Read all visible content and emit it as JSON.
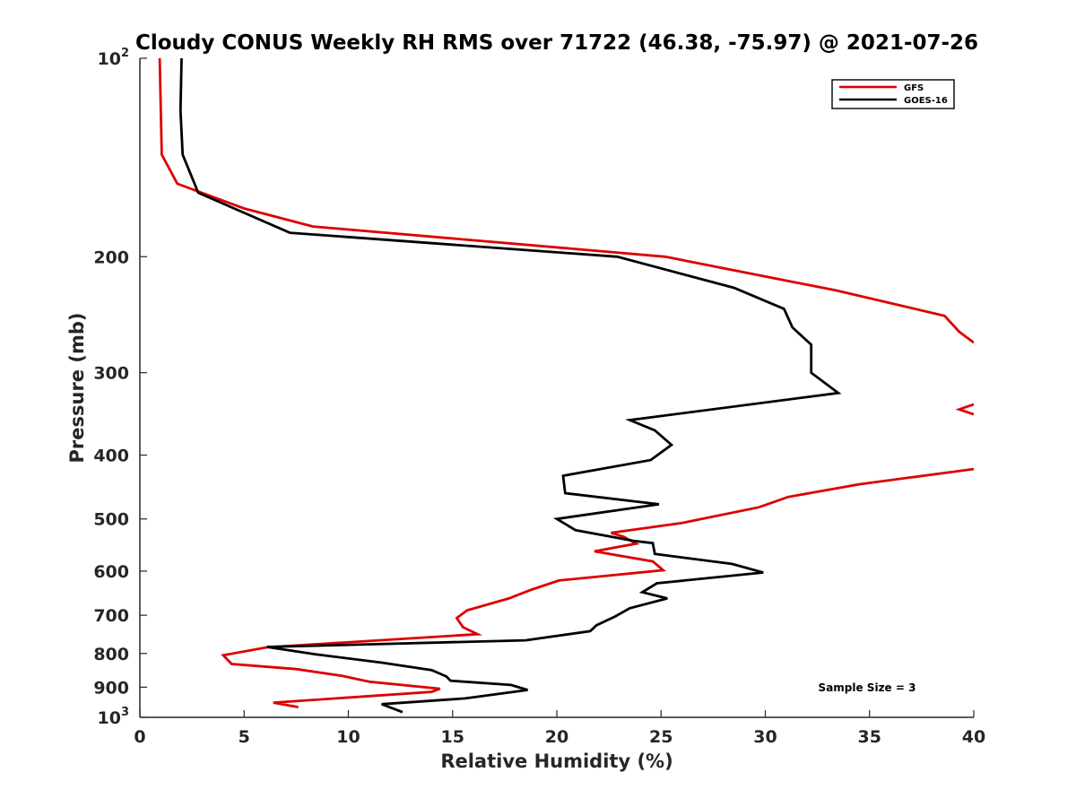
{
  "chart_data": {
    "type": "line",
    "title": "Cloudy CONUS Weekly RH RMS over 71722 (46.38, -75.97) @ 2021-07-26",
    "xlabel": "Relative Humidity (%)",
    "ylabel": "Pressure (mb)",
    "xlim": [
      0,
      40
    ],
    "ylim": [
      100,
      1000
    ],
    "yscale": "log",
    "y_reversed": true,
    "x_ticks": [
      {
        "value": 0,
        "label": "0"
      },
      {
        "value": 5,
        "label": "5"
      },
      {
        "value": 10,
        "label": "10"
      },
      {
        "value": 15,
        "label": "15"
      },
      {
        "value": 20,
        "label": "20"
      },
      {
        "value": 25,
        "label": "25"
      },
      {
        "value": 30,
        "label": "30"
      },
      {
        "value": 35,
        "label": "35"
      },
      {
        "value": 40,
        "label": "40"
      }
    ],
    "y_ticks": [
      {
        "value": 100,
        "label": "10",
        "sup": "2"
      },
      {
        "value": 200,
        "label": "200"
      },
      {
        "value": 300,
        "label": "300"
      },
      {
        "value": 400,
        "label": "400"
      },
      {
        "value": 500,
        "label": "500"
      },
      {
        "value": 600,
        "label": "600"
      },
      {
        "value": 700,
        "label": "700"
      },
      {
        "value": 800,
        "label": "800"
      },
      {
        "value": 900,
        "label": "900"
      },
      {
        "value": 1000,
        "label": "10",
        "sup": "3"
      }
    ],
    "legend_position": "top-right",
    "annotation": "Sample Size = 3",
    "series": [
      {
        "name": "GFS",
        "color": "#dd0000",
        "segments": [
          [
            [
              0.95,
              100
            ],
            [
              1.05,
              140
            ],
            [
              1.8,
              155
            ],
            [
              5,
              169
            ],
            [
              8.3,
              180
            ],
            [
              25.2,
              200
            ],
            [
              33.4,
              225
            ],
            [
              38.6,
              246
            ],
            [
              39.3,
              260
            ],
            [
              40,
              270
            ]
          ],
          [
            [
              40,
              347
            ],
            [
              39.3,
              341
            ],
            [
              40,
              335
            ]
          ],
          [
            [
              40,
              420
            ],
            [
              34.5,
              443
            ],
            [
              31.1,
              463
            ],
            [
              29.7,
              480
            ],
            [
              26,
              507
            ],
            [
              22.6,
              525
            ],
            [
              23.2,
              532
            ],
            [
              23.8,
              545
            ],
            [
              21.8,
              560
            ],
            [
              24.6,
              580
            ],
            [
              25.1,
              598
            ],
            [
              20.1,
              620
            ],
            [
              18.8,
              640
            ],
            [
              17.7,
              660
            ],
            [
              15.7,
              688
            ],
            [
              15.2,
              707
            ],
            [
              15.5,
              730
            ],
            [
              16.2,
              748
            ],
            [
              6.1,
              783
            ],
            [
              4.0,
              805
            ],
            [
              4.4,
              830
            ],
            [
              7.5,
              845
            ],
            [
              9.7,
              865
            ],
            [
              11,
              883
            ],
            [
              14.4,
              905
            ],
            [
              14.0,
              915
            ],
            [
              6.4,
              950
            ],
            [
              7.6,
              965
            ]
          ]
        ]
      },
      {
        "name": "GOES-16",
        "color": "#000000",
        "segments": [
          [
            [
              2.0,
              100
            ],
            [
              1.95,
              120
            ],
            [
              2.05,
              140
            ],
            [
              2.8,
              160
            ],
            [
              7.2,
              184
            ],
            [
              22.9,
              200
            ],
            [
              28.5,
              223
            ],
            [
              30.9,
              240
            ],
            [
              31.3,
              256
            ],
            [
              32.2,
              272
            ],
            [
              32.2,
              300
            ],
            [
              33.5,
              322
            ],
            [
              23.5,
              354
            ],
            [
              24.7,
              367
            ],
            [
              25.5,
              386
            ],
            [
              24.5,
              407
            ],
            [
              20.3,
              430
            ],
            [
              20.4,
              457
            ],
            [
              24.9,
              475
            ],
            [
              20,
              500
            ],
            [
              20.9,
              520
            ],
            [
              23.7,
              540
            ],
            [
              24.6,
              544
            ],
            [
              24.7,
              565
            ],
            [
              28.4,
              585
            ],
            [
              29.9,
              603
            ],
            [
              24.8,
              626
            ],
            [
              24.1,
              646
            ],
            [
              25.3,
              660
            ],
            [
              23.5,
              683
            ],
            [
              22.8,
              703
            ],
            [
              21.9,
              725
            ],
            [
              21.6,
              740
            ],
            [
              18.5,
              764
            ],
            [
              6.1,
              782
            ],
            [
              8.4,
              802
            ],
            [
              11.6,
              826
            ],
            [
              14.0,
              848
            ],
            [
              14.7,
              867
            ],
            [
              14.9,
              880
            ],
            [
              17.8,
              893
            ],
            [
              18.6,
              909
            ],
            [
              15.6,
              936
            ],
            [
              11.6,
              955
            ],
            [
              12.6,
              982
            ]
          ]
        ]
      }
    ]
  }
}
